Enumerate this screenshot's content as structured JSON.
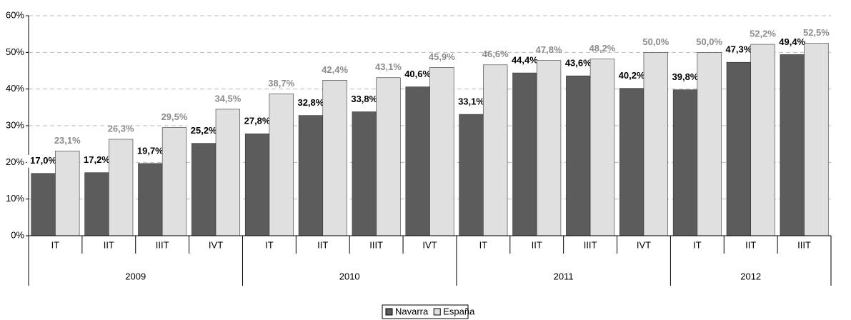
{
  "chart_data": {
    "type": "bar",
    "categories": [
      "IT",
      "IIT",
      "IIIT",
      "IVT",
      "IT",
      "IIT",
      "IIIT",
      "IVT",
      "IT",
      "IIT",
      "IIIT",
      "IVT",
      "IT",
      "IIT",
      "IIIT"
    ],
    "year_groups": [
      {
        "name": "2009",
        "count": 4
      },
      {
        "name": "2010",
        "count": 4
      },
      {
        "name": "2011",
        "count": 4
      },
      {
        "name": "2012",
        "count": 3
      }
    ],
    "series": [
      {
        "name": "Navarra",
        "color": "#5c5c5c",
        "values": [
          17.0,
          17.2,
          19.7,
          25.2,
          27.8,
          32.8,
          33.8,
          40.6,
          33.1,
          44.4,
          43.6,
          40.2,
          39.8,
          47.3,
          49.4
        ],
        "value_labels": [
          "17,0%",
          "17,2%",
          "19,7%",
          "25,2%",
          "27,8%",
          "32,8%",
          "33,8%",
          "40,6%",
          "33,1%",
          "44,4%",
          "43,6%",
          "40,2%",
          "39,8%",
          "47,3%",
          "49,4%"
        ]
      },
      {
        "name": "España",
        "color": "#e0e0e0",
        "values": [
          23.1,
          26.3,
          29.5,
          34.5,
          38.7,
          42.4,
          43.1,
          45.9,
          46.6,
          47.8,
          48.2,
          50.0,
          50.0,
          52.2,
          52.5
        ],
        "value_labels": [
          "23,1%",
          "26,3%",
          "29,5%",
          "34,5%",
          "38,7%",
          "42,4%",
          "43,1%",
          "45,9%",
          "46,6%",
          "47,8%",
          "48,2%",
          "50,0%",
          "50,0%",
          "52,2%",
          "52,5%"
        ]
      }
    ],
    "ylim": [
      0,
      60
    ],
    "yticks": [
      {
        "value": 0,
        "label": "0%"
      },
      {
        "value": 10,
        "label": "10%"
      },
      {
        "value": 20,
        "label": "20%"
      },
      {
        "value": 30,
        "label": "30%"
      },
      {
        "value": 40,
        "label": "40%"
      },
      {
        "value": 50,
        "label": "50%"
      },
      {
        "value": 60,
        "label": "60%"
      }
    ],
    "grid": true
  }
}
